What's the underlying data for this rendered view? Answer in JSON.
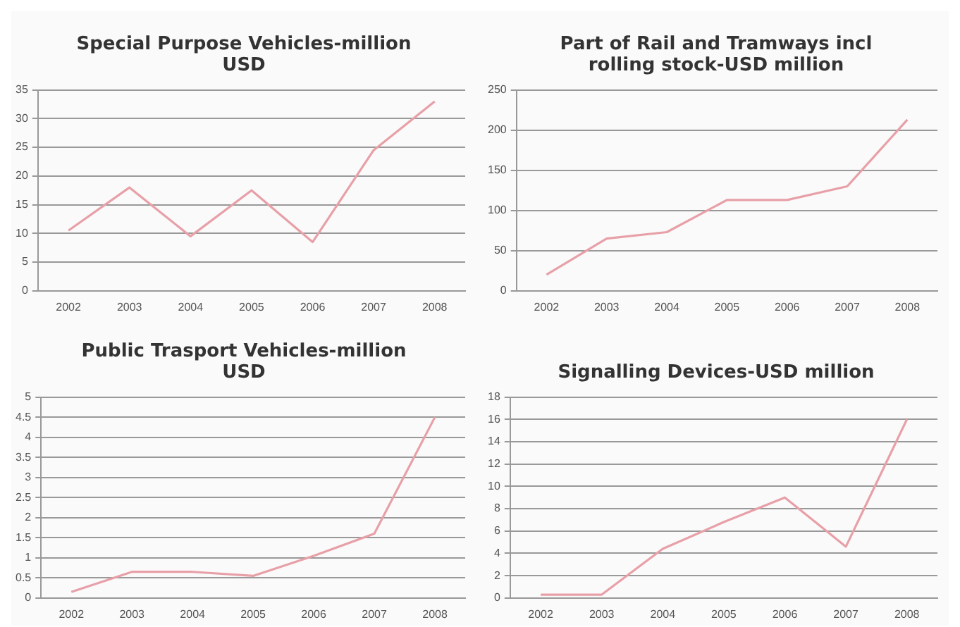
{
  "chart_data": [
    {
      "type": "line",
      "title": "Special Purpose Vehicles-million USD",
      "categories": [
        "2002",
        "2003",
        "2004",
        "2005",
        "2006",
        "2007",
        "2008"
      ],
      "series": [
        {
          "color": "#e8a0a8",
          "values": [
            10.5,
            18,
            9.5,
            17.5,
            8.5,
            24.5,
            33
          ]
        }
      ],
      "ylim": [
        0,
        35
      ],
      "yticks": [
        0,
        5,
        10,
        15,
        20,
        25,
        30,
        35
      ],
      "grid": "y",
      "legend": false,
      "marker": "none",
      "line_style": "solid"
    },
    {
      "type": "line",
      "title": "Part of Rail and Tramways incl rolling stock-USD million",
      "categories": [
        "2002",
        "2003",
        "2004",
        "2005",
        "2006",
        "2007",
        "2008"
      ],
      "series": [
        {
          "color": "#e8a0a8",
          "values": [
            20,
            65,
            73,
            113,
            113,
            130,
            213
          ]
        }
      ],
      "ylim": [
        0,
        250
      ],
      "yticks": [
        0,
        50,
        100,
        150,
        200,
        250
      ],
      "grid": "y",
      "legend": false,
      "marker": "none",
      "line_style": "solid"
    },
    {
      "type": "line",
      "title": "Public Trasport Vehicles-million USD",
      "categories": [
        "2002",
        "2003",
        "2004",
        "2005",
        "2006",
        "2007",
        "2008"
      ],
      "series": [
        {
          "color": "#e8a0a8",
          "values": [
            0.15,
            0.65,
            0.65,
            0.55,
            1.05,
            1.6,
            4.5
          ]
        }
      ],
      "ylim": [
        0,
        5
      ],
      "yticks": [
        0,
        0.5,
        1,
        1.5,
        2,
        2.5,
        3,
        3.5,
        4,
        4.5,
        5
      ],
      "grid": "y",
      "legend": false,
      "marker": "none",
      "line_style": "solid"
    },
    {
      "type": "line",
      "title": "Signalling Devices-USD million",
      "categories": [
        "2002",
        "2003",
        "2004",
        "2005",
        "2006",
        "2007",
        "2008"
      ],
      "series": [
        {
          "color": "#e8a0a8",
          "values": [
            0.3,
            0.3,
            4.4,
            6.8,
            9,
            4.6,
            16
          ]
        }
      ],
      "ylim": [
        0,
        18
      ],
      "yticks": [
        0,
        2,
        4,
        6,
        8,
        10,
        12,
        14,
        16,
        18
      ],
      "grid": "y",
      "legend": false,
      "marker": "none",
      "line_style": "solid"
    }
  ]
}
